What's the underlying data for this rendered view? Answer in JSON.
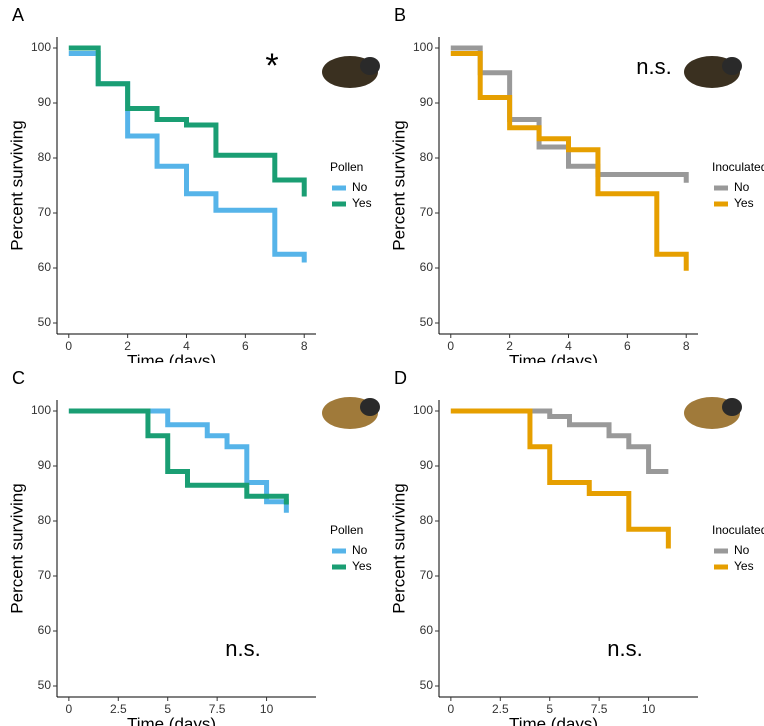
{
  "chart_data": [
    {
      "type": "line",
      "drawstyle": "steps-post",
      "panel": "A",
      "annotation": "*",
      "xlabel": "Time (days)",
      "ylabel": "Percent surviving",
      "xlim": [
        -0.4,
        8.4
      ],
      "ylim": [
        48,
        102
      ],
      "xticks": [
        0,
        2,
        4,
        6,
        8
      ],
      "yticks": [
        50,
        60,
        70,
        80,
        90,
        100
      ],
      "legend_title": "Pollen",
      "series": [
        {
          "name": "No",
          "color": "#56b4e9",
          "x": [
            0,
            1,
            2,
            3,
            4,
            5,
            7,
            8
          ],
          "values": [
            99,
            93.5,
            84,
            78.5,
            73.5,
            70.5,
            62.5,
            61
          ]
        },
        {
          "name": "Yes",
          "color": "#1a9e73",
          "x": [
            0,
            1,
            2,
            3,
            4,
            5,
            7,
            8
          ],
          "values": [
            100,
            93.5,
            89,
            87,
            86,
            80.5,
            76,
            73
          ]
        }
      ]
    },
    {
      "type": "line",
      "drawstyle": "steps-post",
      "panel": "B",
      "annotation": "n.s.",
      "xlabel": "Time (days)",
      "ylabel": "Percent surviving",
      "xlim": [
        -0.4,
        8.4
      ],
      "ylim": [
        48,
        102
      ],
      "xticks": [
        0,
        2,
        4,
        6,
        8
      ],
      "yticks": [
        50,
        60,
        70,
        80,
        90,
        100
      ],
      "legend_title": "Inoculated",
      "series": [
        {
          "name": "No",
          "color": "#999999",
          "x": [
            0,
            1,
            2,
            3,
            4,
            5,
            8
          ],
          "values": [
            100,
            95.5,
            87,
            82,
            78.5,
            77,
            75.5
          ]
        },
        {
          "name": "Yes",
          "color": "#e69f00",
          "x": [
            0,
            1,
            2,
            3,
            4,
            5,
            7,
            8
          ],
          "values": [
            99,
            91,
            85.5,
            83.5,
            81.5,
            73.5,
            62.5,
            59.5
          ]
        }
      ]
    },
    {
      "type": "line",
      "drawstyle": "steps-post",
      "panel": "C",
      "annotation": "n.s.",
      "xlabel": "Time (days)",
      "ylabel": "Percent surviving",
      "xlim": [
        -0.6,
        12.5
      ],
      "ylim": [
        48,
        102
      ],
      "xticks": [
        0,
        2.5,
        5,
        7.5,
        10
      ],
      "yticks": [
        50,
        60,
        70,
        80,
        90,
        100
      ],
      "legend_title": "Pollen",
      "series": [
        {
          "name": "No",
          "color": "#56b4e9",
          "x": [
            0,
            5,
            7,
            8,
            9,
            10,
            11
          ],
          "values": [
            100,
            97.5,
            95.5,
            93.5,
            87,
            83.5,
            81.5
          ]
        },
        {
          "name": "Yes",
          "color": "#1a9e73",
          "x": [
            0,
            4,
            5,
            6,
            9,
            11
          ],
          "values": [
            100,
            95.5,
            89,
            86.5,
            84.5,
            83
          ]
        }
      ]
    },
    {
      "type": "line",
      "drawstyle": "steps-post",
      "panel": "D",
      "annotation": "n.s.",
      "xlabel": "Time (days)",
      "ylabel": "Percent surviving",
      "xlim": [
        -0.6,
        12.5
      ],
      "ylim": [
        48,
        102
      ],
      "xticks": [
        0,
        2.5,
        5,
        7.5,
        10
      ],
      "yticks": [
        50,
        60,
        70,
        80,
        90,
        100
      ],
      "legend_title": "Inoculated",
      "series": [
        {
          "name": "No",
          "color": "#999999",
          "x": [
            0,
            5,
            6,
            8,
            9,
            10,
            11
          ],
          "values": [
            100,
            99,
            97.5,
            95.5,
            93.5,
            89,
            89
          ]
        },
        {
          "name": "Yes",
          "color": "#e69f00",
          "x": [
            0,
            4,
            5,
            7,
            9,
            11
          ],
          "values": [
            100,
            93.5,
            87,
            85,
            78.5,
            75
          ]
        }
      ]
    }
  ]
}
